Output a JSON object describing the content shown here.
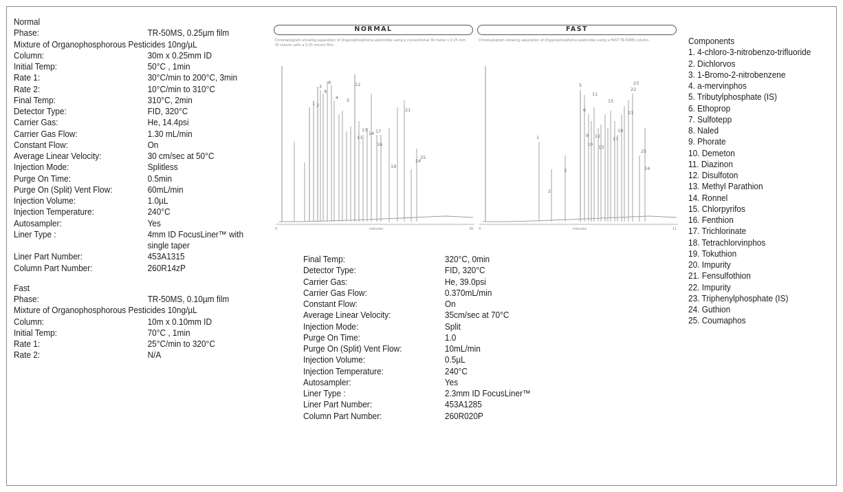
{
  "normal": {
    "title": "Normal",
    "phase": {
      "label": "Phase:",
      "value": "TR-50MS, 0.25µm film"
    },
    "mixture": "Mixture of Organophosphorous Pesticides 10ng/µL",
    "params": [
      {
        "label": "Column:",
        "value": "30m x 0.25mm ID"
      },
      {
        "label": "Initial Temp:",
        "value": "50°C , 1min"
      },
      {
        "label": "Rate 1:",
        "value": "30°C/min to 200°C, 3min"
      },
      {
        "label": "Rate 2:",
        "value": "10°C/min to 310°C"
      },
      {
        "label": "Final Temp:",
        "value": "310°C, 2min"
      },
      {
        "label": "Detector Type:",
        "value": "FID, 320°C"
      },
      {
        "label": "Carrier Gas:",
        "value": "He, 14.4psi"
      },
      {
        "label": "Carrier Gas Flow:",
        "value": "1.30 mL/min"
      },
      {
        "label": "Constant Flow:",
        "value": "On"
      },
      {
        "label": "Average Linear Velocity:",
        "value": "30 cm/sec at 50°C"
      },
      {
        "label": "Injection Mode:",
        "value": "Splitless"
      },
      {
        "label": "Purge On Time:",
        "value": "0.5min"
      },
      {
        "label": "Purge On (Split) Vent Flow:",
        "value": "60mL/min"
      },
      {
        "label": "Injection Volume:",
        "value": "1.0µL"
      },
      {
        "label": "Injection Temperature:",
        "value": "240°C"
      },
      {
        "label": "Autosampler:",
        "value": "Yes"
      },
      {
        "label": "Liner Type :",
        "value": "4mm ID FocusLiner™ with",
        "value2": "single taper"
      },
      {
        "label": "Liner Part Number:",
        "value": "453A1315"
      },
      {
        "label": "Column Part Number:",
        "value": "260R14zP"
      }
    ]
  },
  "fast": {
    "title": "Fast",
    "phase": {
      "label": "Phase:",
      "value": "TR-50MS, 0.10µm film"
    },
    "mixture": "Mixture of Organophosphorous Pesticides 10ng/µL",
    "params": [
      {
        "label": "Column:",
        "value": "10m x 0.10mm ID"
      },
      {
        "label": "Initial Temp:",
        "value": "70°C , 1min"
      },
      {
        "label": "Rate 1:",
        "value": "25°C/min to 320°C"
      },
      {
        "label": "Rate 2:",
        "value": "N/A"
      }
    ],
    "params_cont": [
      {
        "label": "Final Temp:",
        "value": "320°C, 0min"
      },
      {
        "label": "Detector Type:",
        "value": "FID, 320°C"
      },
      {
        "label": "Carrier Gas:",
        "value": "He, 39.0psi"
      },
      {
        "label": "Carrier Gas Flow:",
        "value": "0.370mL/min"
      },
      {
        "label": "Constant Flow:",
        "value": "On"
      },
      {
        "label": "Average Linear Velocity:",
        "value": "35cm/sec at 70°C"
      },
      {
        "label": "Injection Mode:",
        "value": "Split"
      },
      {
        "label": "Purge On Time:",
        "value": "1.0"
      },
      {
        "label": "Purge On (Split) Vent Flow:",
        "value": "10mL/min"
      },
      {
        "label": "Injection Volume:",
        "value": "0.5µL"
      },
      {
        "label": "Injection Temperature:",
        "value": "240°C"
      },
      {
        "label": "Autosampler:",
        "value": "Yes"
      },
      {
        "label": "Liner Type :",
        "value": "2.3mm ID FocusLiner™"
      },
      {
        "label": "Liner Part Number:",
        "value": "453A1285"
      },
      {
        "label": "Column Part Number:",
        "value": "260R020P"
      }
    ]
  },
  "chromatograms": {
    "normal": {
      "title": "NORMAL",
      "caption": "Chromatogram showing separation of Organophosphorus pesticides using a conventional 30 meter x 0.25 mm ID column with a 0.25 micron film.",
      "axis_start": "0",
      "axis_label": "minutes",
      "axis_end": "30"
    },
    "fast": {
      "title": "FAST",
      "caption": "Chromatogram showing separation of Organophosphorus pesticides using a FAST TR-50MS column.",
      "axis_start": "0",
      "axis_label": "minutes",
      "axis_end": "11"
    },
    "peak_labels_normal": [
      "1",
      "2",
      "3",
      "4",
      "5",
      "6",
      "7",
      "8",
      "9",
      "10",
      "11",
      "12",
      "13",
      "14",
      "15",
      "16",
      "17",
      "18",
      "19",
      "20",
      "21",
      "22",
      "23",
      "24",
      "25"
    ],
    "peak_labels_fast": [
      "1",
      "2",
      "3",
      "4",
      "5",
      "6",
      "7",
      "8",
      "9",
      "10",
      "11",
      "12",
      "13",
      "14",
      "15",
      "16",
      "17",
      "18",
      "19",
      "20",
      "21",
      "22",
      "23",
      "24",
      "25"
    ]
  },
  "components": {
    "title": "Components",
    "items": [
      "1. 4-chloro-3-nitrobenzo-trifluoride",
      "2. Dichlorvos",
      "3. 1-Bromo-2-nitrobenzene",
      "4. a-mervinphos",
      "5. Tributylphosphate (IS)",
      "6. Ethoprop",
      "7. Sulfotepp",
      "8. Naled",
      "9. Phorate",
      "10.    Demeton",
      "11. Diazinon",
      "12. Disulfoton",
      "13. Methyl Parathion",
      "14. Ronnel",
      "15. Chlorpyrifos",
      "16. Fenthion",
      "17. Trichlorinate",
      "18. Tetrachlorvinphos",
      "19. Tokuthion",
      "20. Impurity",
      "21. Fensulfothion",
      "22. Impurity",
      "23. Triphenylphosphate (IS)",
      "24. Guthion",
      "25. Coumaphos"
    ]
  }
}
